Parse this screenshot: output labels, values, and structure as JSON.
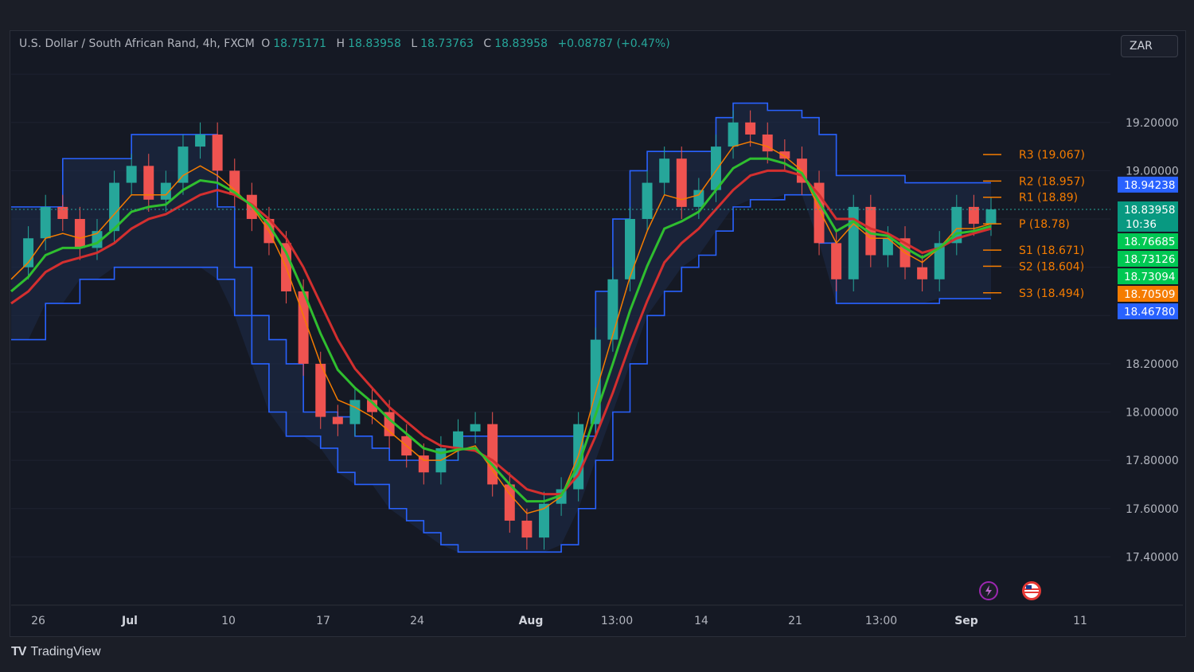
{
  "header": {
    "symbol": "U.S. Dollar / South African Rand, 4h, FXCM",
    "open_label": "O",
    "open": "18.75171",
    "high_label": "H",
    "high": "18.83958",
    "low_label": "L",
    "low": "18.73763",
    "close_label": "C",
    "close": "18.83958",
    "change": "+0.08787 (+0.47%)"
  },
  "currency": "ZAR",
  "brand": "TradingView",
  "icons": {
    "logo": "tradingview-logo-icon",
    "flash": "lightning-icon",
    "event": "us-flag-icon"
  },
  "colors": {
    "up": "#26a69a",
    "down": "#ef5350",
    "channel": "#2962ff",
    "green_ma": "#2fbe2f",
    "red_ma": "#d32f2f",
    "orange_ma": "#f57c00",
    "pivot": "#f57c00"
  },
  "chart_data": {
    "type": "line",
    "title": "U.S. Dollar / South African Rand, 4h, FXCM",
    "ylim": [
      17.2,
      19.45
    ],
    "y_ticks": [
      "19.20000",
      "19.00000",
      "18.20000",
      "18.00000",
      "17.80000",
      "17.60000",
      "17.40000"
    ],
    "x_tick_labels": [
      "26",
      "Jul",
      "10",
      "17",
      "24",
      "Aug",
      "13:00",
      "14",
      "21",
      "13:00",
      "Sep",
      "11"
    ],
    "pivots": [
      {
        "label": "R3 (19.067)",
        "value": 19.067
      },
      {
        "label": "R2 (18.957)",
        "value": 18.957
      },
      {
        "label": "R1 (18.89)",
        "value": 18.89
      },
      {
        "label": "P (18.78)",
        "value": 18.78
      },
      {
        "label": "S1 (18.671)",
        "value": 18.671
      },
      {
        "label": "S2 (18.604)",
        "value": 18.604
      },
      {
        "label": "S3 (18.494)",
        "value": 18.494
      }
    ],
    "price_tags": [
      {
        "value": 18.94238,
        "text": "18.94238",
        "color": "#2962ff"
      },
      {
        "value": 18.83958,
        "text": "18.83958",
        "sub": "10:36",
        "color": "#089981"
      },
      {
        "value": 18.76685,
        "text": "18.76685",
        "color": "#00c853"
      },
      {
        "value": 18.73126,
        "text": "18.73126",
        "color": "#00c853"
      },
      {
        "value": 18.73094,
        "text": "18.73094",
        "color": "#00c853"
      },
      {
        "value": 18.70509,
        "text": "18.70509",
        "color": "#f57c00"
      },
      {
        "value": 18.4678,
        "text": "18.46780",
        "color": "#2962ff"
      }
    ],
    "series": [
      {
        "values": [
          18.6,
          18.72,
          18.85,
          18.8,
          18.68,
          18.75,
          18.95,
          19.02,
          18.88,
          18.95,
          19.1,
          19.15,
          19.0,
          18.9,
          18.8,
          18.7,
          18.5,
          18.2,
          17.98,
          17.95,
          18.05,
          18.0,
          17.9,
          17.82,
          17.75,
          17.85,
          17.92,
          17.95,
          17.7,
          17.55,
          17.48,
          17.62,
          17.68,
          17.95,
          18.3,
          18.55,
          18.8,
          18.95,
          19.05,
          18.85,
          18.92,
          19.1,
          19.2,
          19.15,
          19.08,
          19.05,
          18.95,
          18.7,
          18.55,
          18.85,
          18.65,
          18.72,
          18.6,
          18.55,
          18.7,
          18.85,
          18.78,
          18.84
        ]
      },
      {
        "name": "",
        "values": [
          18.55,
          18.62,
          18.72,
          18.74,
          18.72,
          18.74,
          18.82,
          18.9,
          18.9,
          18.9,
          18.98,
          19.02,
          18.98,
          18.92,
          18.85,
          18.75,
          18.6,
          18.4,
          18.2,
          18.05,
          18.02,
          17.98,
          17.92,
          17.86,
          17.8,
          17.8,
          17.84,
          17.86,
          17.76,
          17.66,
          17.58,
          17.6,
          17.65,
          17.82,
          18.08,
          18.32,
          18.56,
          18.75,
          18.9,
          18.88,
          18.9,
          19.0,
          19.1,
          19.12,
          19.1,
          19.06,
          19.0,
          18.84,
          18.7,
          18.78,
          18.72,
          18.72,
          18.66,
          18.62,
          18.68,
          18.76,
          18.76,
          18.78
        ]
      },
      {
        "name": "",
        "values": [
          18.45,
          18.5,
          18.58,
          18.62,
          18.64,
          18.66,
          18.7,
          18.76,
          18.8,
          18.82,
          18.86,
          18.9,
          18.92,
          18.9,
          18.86,
          18.8,
          18.72,
          18.6,
          18.45,
          18.3,
          18.18,
          18.1,
          18.02,
          17.96,
          17.9,
          17.86,
          17.85,
          17.84,
          17.8,
          17.74,
          17.68,
          17.66,
          17.66,
          17.74,
          17.9,
          18.08,
          18.28,
          18.46,
          18.62,
          18.7,
          18.76,
          18.84,
          18.92,
          18.98,
          19.0,
          19.0,
          18.98,
          18.9,
          18.8,
          18.8,
          18.76,
          18.74,
          18.7,
          18.66,
          18.68,
          18.72,
          18.74,
          18.76
        ]
      }
    ],
    "channel_upper": [
      18.85,
      18.85,
      18.85,
      19.05,
      19.05,
      19.05,
      19.05,
      19.15,
      19.15,
      19.15,
      19.15,
      19.15,
      18.85,
      18.6,
      18.4,
      18.3,
      18.2,
      18.0,
      18.0,
      17.98,
      17.9,
      17.85,
      17.8,
      17.8,
      17.8,
      17.8,
      17.9,
      17.9,
      17.9,
      17.9,
      17.9,
      17.9,
      17.9,
      17.9,
      18.5,
      18.8,
      19.0,
      19.08,
      19.08,
      19.08,
      19.08,
      19.22,
      19.28,
      19.28,
      19.25,
      19.25,
      19.22,
      19.15,
      18.98,
      18.98,
      18.98,
      18.98,
      18.95,
      18.95,
      18.95,
      18.95,
      18.95,
      18.95
    ],
    "channel_lower": [
      18.3,
      18.3,
      18.45,
      18.45,
      18.55,
      18.55,
      18.6,
      18.6,
      18.6,
      18.6,
      18.6,
      18.6,
      18.55,
      18.4,
      18.2,
      18.0,
      17.9,
      17.9,
      17.85,
      17.75,
      17.7,
      17.7,
      17.6,
      17.55,
      17.5,
      17.45,
      17.42,
      17.42,
      17.42,
      17.42,
      17.42,
      17.42,
      17.45,
      17.6,
      17.8,
      18.0,
      18.2,
      18.4,
      18.5,
      18.6,
      18.65,
      18.75,
      18.85,
      18.88,
      18.88,
      18.9,
      18.9,
      18.7,
      18.45,
      18.45,
      18.45,
      18.45,
      18.45,
      18.45,
      18.47,
      18.47,
      18.47,
      18.47
    ]
  }
}
